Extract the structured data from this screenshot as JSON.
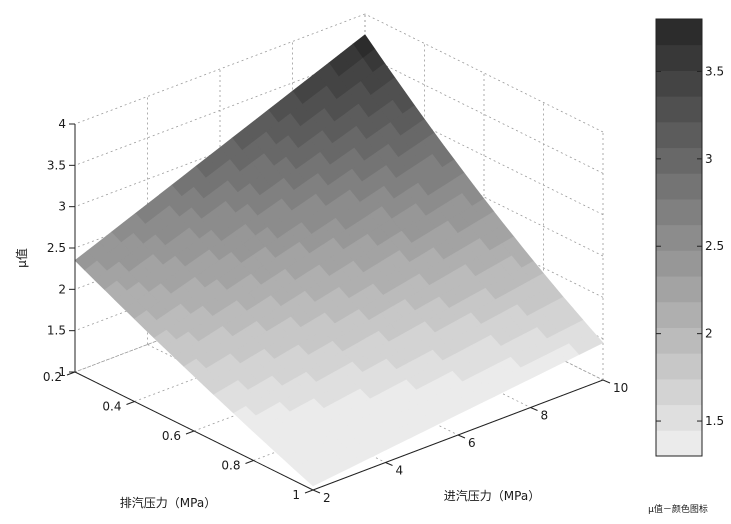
{
  "chart_data": {
    "type": "surface3d",
    "x_name": "排汽压力",
    "y_name": "进汽压力",
    "z_name": "μ值",
    "x_axis": {
      "label": "排汽压力（MPa）",
      "range": [
        0.2,
        1.0
      ],
      "ticks": [
        0.2,
        0.4,
        0.6,
        0.8,
        1.0
      ],
      "tick_labels": [
        "0.2",
        "0.4",
        "0.6",
        "0.8",
        "1"
      ]
    },
    "y_axis": {
      "label": "进汽压力（MPa）",
      "range": [
        2,
        10
      ],
      "ticks": [
        2,
        4,
        6,
        8,
        10
      ],
      "tick_labels": [
        "2",
        "4",
        "6",
        "8",
        "10"
      ]
    },
    "z_axis": {
      "label": "μ值",
      "range": [
        1,
        4
      ],
      "ticks": [
        1,
        1.5,
        2,
        2.5,
        3,
        3.5,
        4
      ],
      "tick_labels": [
        "1",
        "1.5",
        "2",
        "2.5",
        "3",
        "3.5",
        "4"
      ]
    },
    "surface_corners": [
      {
        "x": 0.2,
        "y": 2,
        "z": 2.35
      },
      {
        "x": 0.2,
        "y": 10,
        "z": 3.75
      },
      {
        "x": 1.0,
        "y": 2,
        "z": 1.05
      },
      {
        "x": 1.0,
        "y": 10,
        "z": 1.45
      }
    ],
    "colorbar": {
      "range": [
        1.3,
        3.8
      ],
      "ticks": [
        1.5,
        2,
        2.5,
        3,
        3.5
      ],
      "tick_labels": [
        "1.5",
        "2",
        "2.5",
        "3",
        "3.5"
      ],
      "levels": 17,
      "color_low": "#f1f1f1",
      "color_high": "#262626",
      "caption": "μ值－颜色图标"
    },
    "grid": true,
    "colormap": "gray"
  }
}
